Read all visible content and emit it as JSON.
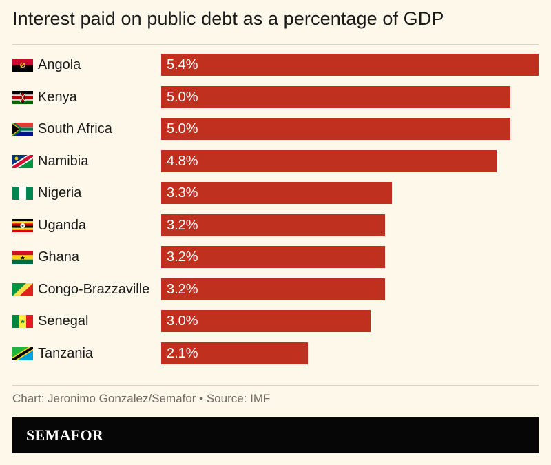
{
  "title": "Interest paid on public debt as a percentage of GDP",
  "source": "Chart: Jeronimo Gonzalez/Semafor • Source: IMF",
  "brand": "SEMAFOR",
  "colors": {
    "bar": "#c0301e",
    "background": "#fdf8ea",
    "brand_bg": "#060606"
  },
  "chart_data": {
    "type": "bar",
    "orientation": "horizontal",
    "title": "Interest paid on public debt as a percentage of GDP",
    "categories": [
      "Angola",
      "Kenya",
      "South Africa",
      "Namibia",
      "Nigeria",
      "Uganda",
      "Ghana",
      "Congo-Brazzaville",
      "Senegal",
      "Tanzania"
    ],
    "values": [
      5.4,
      5.0,
      5.0,
      4.8,
      3.3,
      3.2,
      3.2,
      3.2,
      3.0,
      2.1
    ],
    "labels": [
      "5.4%",
      "5.0%",
      "5.0%",
      "4.8%",
      "3.3%",
      "3.2%",
      "3.2%",
      "3.2%",
      "3.0%",
      "2.1%"
    ],
    "flag_icons": [
      "angola-flag-icon",
      "kenya-flag-icon",
      "south-africa-flag-icon",
      "namibia-flag-icon",
      "nigeria-flag-icon",
      "uganda-flag-icon",
      "ghana-flag-icon",
      "congo-brazzaville-flag-icon",
      "senegal-flag-icon",
      "tanzania-flag-icon"
    ],
    "xlim": [
      0,
      5.4
    ],
    "grid": false,
    "legend": "none"
  }
}
